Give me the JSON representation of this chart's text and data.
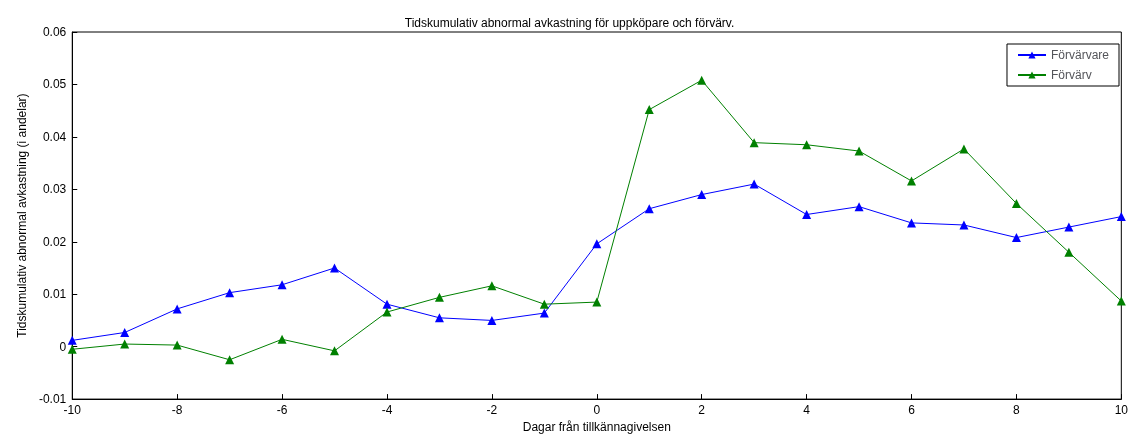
{
  "chart_data": {
    "type": "line",
    "title": "Tidskumulativ abnormal avkastning för uppköpare och förvärv.",
    "xlabel": "Dagar från tillkännagivelsen",
    "ylabel": "Tidskumulativ abnormal avkastning (i andelar)",
    "x": [
      -10,
      -9,
      -8,
      -7,
      -6,
      -5,
      -4,
      -3,
      -2,
      -1,
      0,
      1,
      2,
      3,
      4,
      5,
      6,
      7,
      8,
      9,
      10
    ],
    "series": [
      {
        "name": "Förvärvare",
        "color": "#0000ff",
        "values": [
          0.0012,
          0.0027,
          0.0072,
          0.0103,
          0.0118,
          0.015,
          0.0081,
          0.0055,
          0.005,
          0.0064,
          0.0196,
          0.0263,
          0.029,
          0.031,
          0.0252,
          0.0267,
          0.0236,
          0.0232,
          0.0208,
          0.0228,
          0.0248
        ]
      },
      {
        "name": "Förvärv",
        "color": "#008000",
        "values": [
          -0.0005,
          0.0005,
          0.0003,
          -0.0025,
          0.0014,
          -0.0008,
          0.0066,
          0.0094,
          0.0116,
          0.0081,
          0.0085,
          0.0452,
          0.0508,
          0.0389,
          0.0385,
          0.0373,
          0.0316,
          0.0377,
          0.0273,
          0.018,
          0.0087
        ]
      }
    ],
    "xlim": [
      -10,
      10
    ],
    "xticks": [
      -10,
      -8,
      -6,
      -4,
      -2,
      0,
      2,
      4,
      6,
      8,
      10
    ],
    "ylim": [
      -0.01,
      0.06
    ],
    "yticks": [
      -0.01,
      0,
      0.01,
      0.02,
      0.03,
      0.04,
      0.05,
      0.06
    ],
    "grid": false,
    "legend": "top right",
    "marker": "triangle",
    "line_style": "solid"
  }
}
